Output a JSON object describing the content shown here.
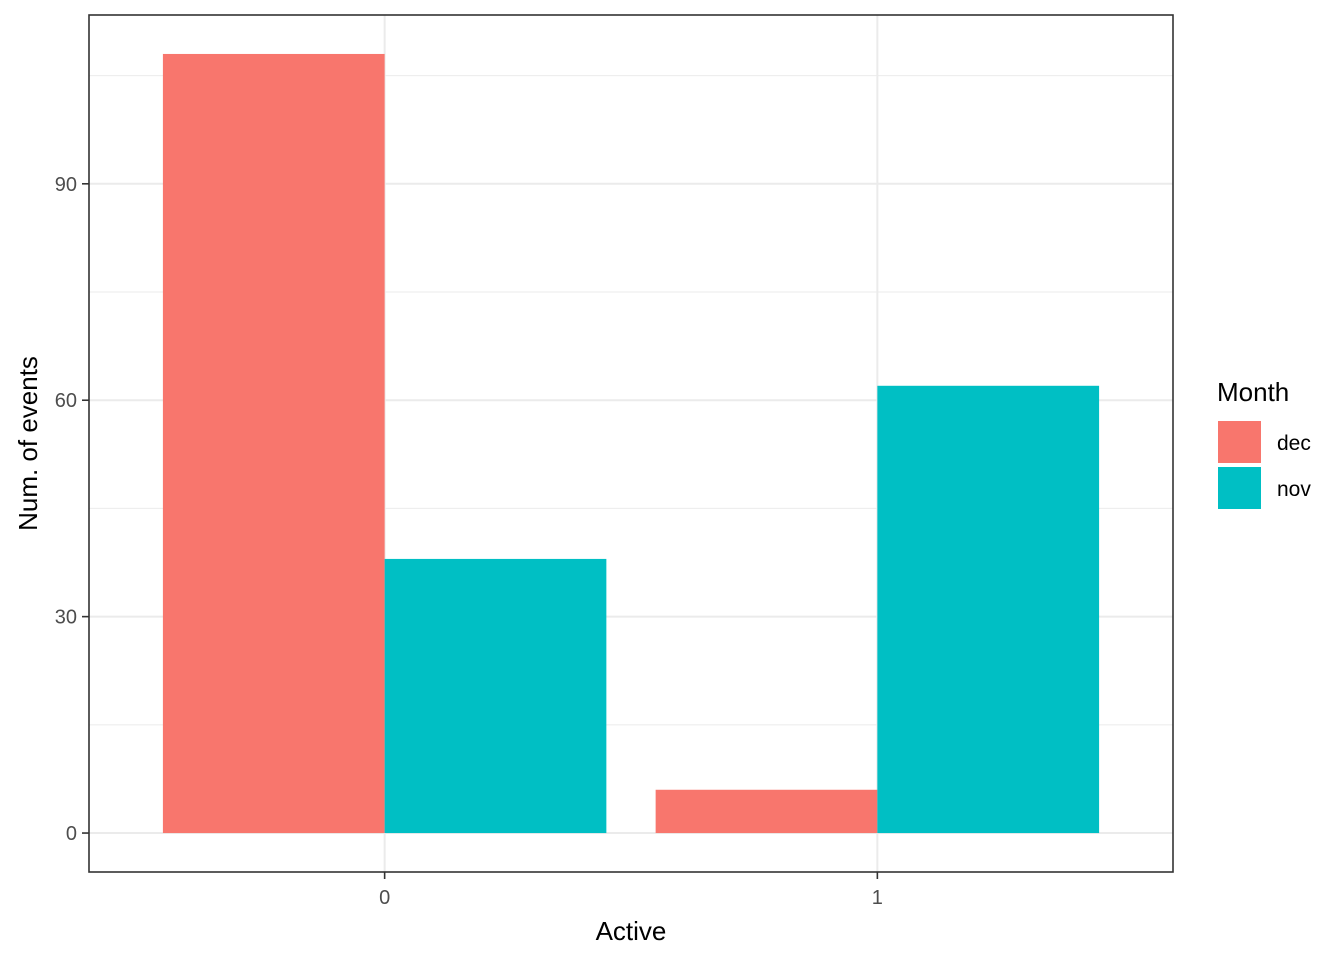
{
  "chart_data": {
    "type": "bar",
    "title": "",
    "xlabel": "Active",
    "ylabel": "Num. of events",
    "categories": [
      "0",
      "1"
    ],
    "series": [
      {
        "name": "dec",
        "color": "#F8766D",
        "values": [
          108,
          6
        ]
      },
      {
        "name": "nov",
        "color": "#00BFC4",
        "values": [
          38,
          62
        ]
      }
    ],
    "ylim": [
      -5.4,
      113.4
    ],
    "yticks": [
      0,
      30,
      60,
      90
    ],
    "grid": true,
    "legend": {
      "title": "Month",
      "position": "right"
    }
  }
}
